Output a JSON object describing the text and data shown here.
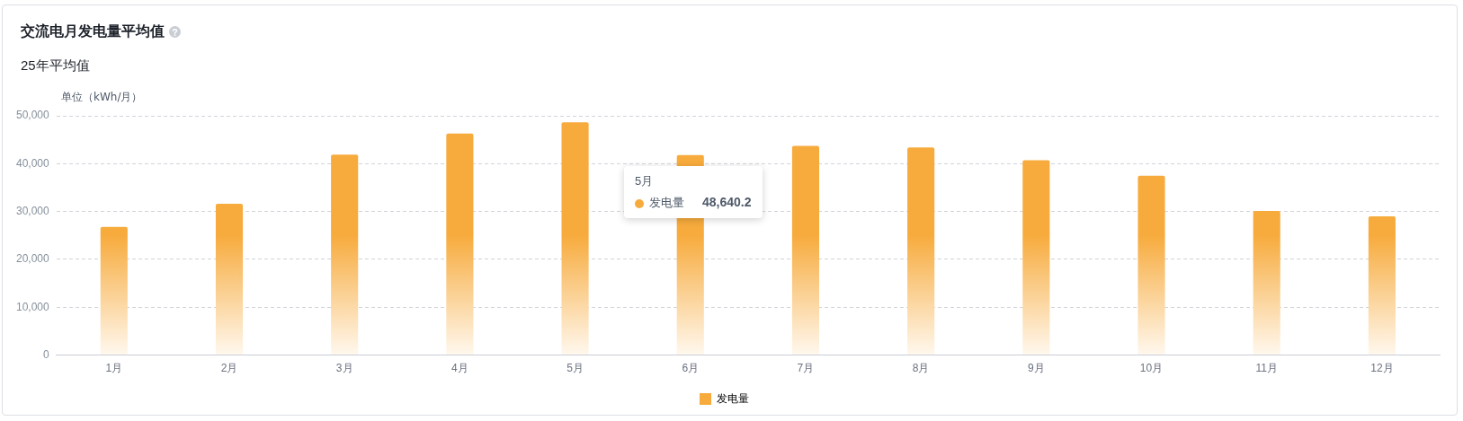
{
  "chart_data": {
    "type": "bar",
    "title": "交流电月发电量平均值",
    "subtitle": "25年平均值",
    "ylabel": "单位（kWh/月）",
    "categories": [
      "1月",
      "2月",
      "3月",
      "4月",
      "5月",
      "6月",
      "7月",
      "8月",
      "9月",
      "10月",
      "11月",
      "12月"
    ],
    "series": [
      {
        "name": "发电量",
        "color": "#f7ab3d",
        "values": [
          26800,
          31600,
          41900,
          46300,
          48640.2,
          41800,
          43700,
          43400,
          40700,
          37500,
          30100,
          29000
        ]
      }
    ],
    "ylim": [
      0,
      50000
    ],
    "yticks": [
      {
        "value": 0,
        "label": "0"
      },
      {
        "value": 10000,
        "label": "10,000"
      },
      {
        "value": 20000,
        "label": "20,000"
      },
      {
        "value": 30000,
        "label": "30,000"
      },
      {
        "value": 40000,
        "label": "40,000"
      },
      {
        "value": 50000,
        "label": "50,000"
      }
    ],
    "grid": "y",
    "legend": "bottom",
    "annotations": [
      "5月",
      "发电量",
      "48,640.2"
    ]
  }
}
